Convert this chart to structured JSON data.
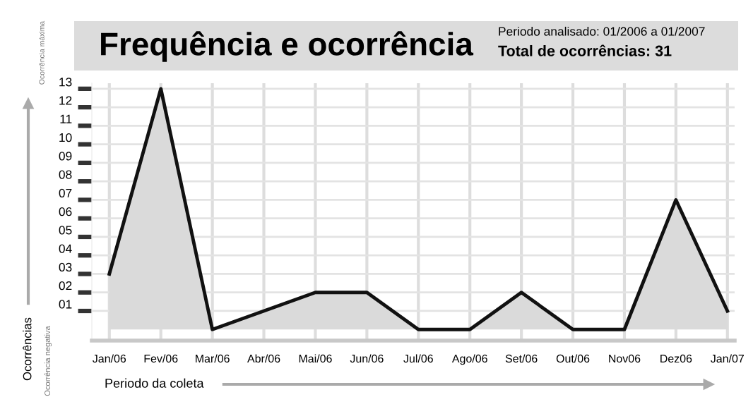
{
  "chart_data": {
    "type": "area",
    "title": "Frequência e ocorrência",
    "subtitle": "Periodo analisado: 01/2006 a 01/2007",
    "xlabel": "Periodo da coleta",
    "ylabel": "Ocorrências",
    "annotations": [
      "Total de ocorrências: 31",
      "Ocorrência máxima",
      "Ocorrência negativa"
    ],
    "categories": [
      "Jan/06",
      "Fev/06",
      "Mar/06",
      "Abr/06",
      "Mai/06",
      "Jun/06",
      "Jul/06",
      "Ago/06",
      "Set/06",
      "Out/06",
      "Nov06",
      "Dez06",
      "Jan/07"
    ],
    "series": [
      {
        "color": "#dadada",
        "values": [
          3,
          13,
          0,
          1,
          2,
          2,
          0,
          0,
          2,
          0,
          0,
          7,
          1
        ]
      }
    ],
    "ylim": [
      -0.6,
      13.3
    ],
    "yticks": [
      {
        "value": 1,
        "label": "01"
      },
      {
        "value": 2,
        "label": "02"
      },
      {
        "value": 3,
        "label": "03"
      },
      {
        "value": 4,
        "label": "04"
      },
      {
        "value": 5,
        "label": "05"
      },
      {
        "value": 6,
        "label": "06"
      },
      {
        "value": 7,
        "label": "07"
      },
      {
        "value": 8,
        "label": "08"
      },
      {
        "value": 9,
        "label": "09"
      },
      {
        "value": 10,
        "label": "10"
      },
      {
        "value": 11,
        "label": "11"
      },
      {
        "value": 12,
        "label": "12"
      },
      {
        "value": 13,
        "label": "13"
      }
    ],
    "grid": true,
    "legend": false
  }
}
